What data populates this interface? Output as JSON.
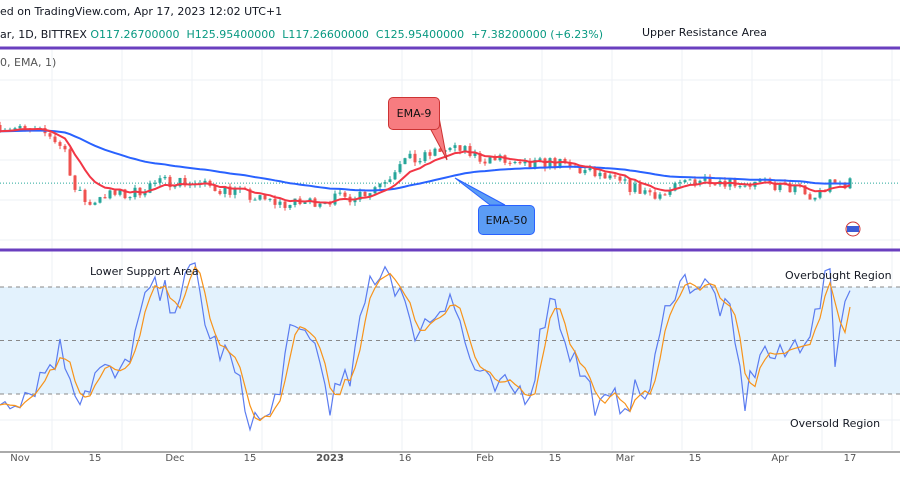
{
  "header": {
    "published": "ed on TradingView.com, Apr 17, 2023 12:02 UTC+1",
    "symbol": "ar, 1D, BITTREX",
    "open": "O117.26700000",
    "high": "H125.95400000",
    "low": "L117.26600000",
    "close": "C125.95400000",
    "change": "+7.38200000 (+6.23%)",
    "indicator": "0, EMA, 1)"
  },
  "annotations": {
    "upper": "Upper Resistance Area",
    "lower": "Lower Support Area",
    "overbought": "Overbought Region",
    "oversold": "Oversold Region",
    "ema9": "EMA-9",
    "ema50": "EMA-50"
  },
  "colors": {
    "up": "#26a69a",
    "down": "#ef5350",
    "ema9": "#f23645",
    "ema50": "#2962ff",
    "stochK": "#5b7cf0",
    "stochD": "#f7931a",
    "purple": "#6a3fbf",
    "band": "#e3f2fd"
  },
  "chart_data": {
    "type": "candlestick",
    "xaxis": {
      "ticks": [
        {
          "label": "Nov",
          "day": 4
        },
        {
          "label": "15",
          "day": 19
        },
        {
          "label": "Dec",
          "day": 35
        },
        {
          "label": "15",
          "day": 50
        },
        {
          "label": "2023",
          "day": 66
        },
        {
          "label": "16",
          "day": 81
        },
        {
          "label": "Feb",
          "day": 97
        },
        {
          "label": "15",
          "day": 111
        },
        {
          "label": "Mar",
          "day": 125
        },
        {
          "label": "15",
          "day": 139
        },
        {
          "label": "Apr",
          "day": 156
        },
        {
          "label": "17",
          "day": 170
        }
      ]
    },
    "last_price": 125.954,
    "price_keypoints": [
      [
        0,
        149.2
      ],
      [
        4,
        147.2
      ],
      [
        10,
        145.2
      ],
      [
        13,
        139.2
      ],
      [
        15,
        123.2
      ],
      [
        18,
        117.2
      ],
      [
        20,
        121.2
      ],
      [
        26,
        121.2
      ],
      [
        30,
        125.2
      ],
      [
        35,
        127.2
      ],
      [
        40,
        125.2
      ],
      [
        46,
        123.2
      ],
      [
        52,
        119.2
      ],
      [
        58,
        117.2
      ],
      [
        64,
        119.2
      ],
      [
        69,
        120
      ],
      [
        74,
        123.2
      ],
      [
        78,
        129.2
      ],
      [
        80,
        135.2
      ],
      [
        84,
        135.2
      ],
      [
        88,
        139.2
      ],
      [
        92,
        139.2
      ],
      [
        96,
        136
      ],
      [
        100,
        135.2
      ],
      [
        104,
        132
      ],
      [
        110,
        134.4
      ],
      [
        116,
        131.2
      ],
      [
        122,
        127.2
      ],
      [
        128,
        123.2
      ],
      [
        133,
        121.2
      ],
      [
        138,
        127.2
      ],
      [
        142,
        128
      ],
      [
        148,
        126
      ],
      [
        154,
        125.2
      ],
      [
        160,
        123.2
      ],
      [
        162,
        119.2
      ],
      [
        166,
        125.2
      ],
      [
        170,
        126
      ]
    ],
    "stochastic": {
      "overbought": 80,
      "middle": 50,
      "oversold": 20,
      "k_keypoints": [
        [
          0,
          16.6
        ],
        [
          6,
          22.2
        ],
        [
          12,
          44.7
        ],
        [
          16,
          19.4
        ],
        [
          20,
          33.4
        ],
        [
          24,
          27.8
        ],
        [
          30,
          78.3
        ],
        [
          35,
          72.7
        ],
        [
          39,
          89.5
        ],
        [
          42,
          50.3
        ],
        [
          46,
          39
        ],
        [
          50,
          5.4
        ],
        [
          54,
          5.4
        ],
        [
          58,
          50.3
        ],
        [
          62,
          55.9
        ],
        [
          66,
          16.6
        ],
        [
          70,
          27.8
        ],
        [
          74,
          83.9
        ],
        [
          77,
          92.3
        ],
        [
          80,
          78.3
        ],
        [
          82,
          55.9
        ],
        [
          86,
          61.5
        ],
        [
          90,
          78.3
        ],
        [
          94,
          39
        ],
        [
          98,
          22.2
        ],
        [
          106,
          22.2
        ],
        [
          110,
          78.3
        ],
        [
          114,
          44.7
        ],
        [
          120,
          11
        ],
        [
          124,
          16.6
        ],
        [
          130,
          22.2
        ],
        [
          134,
          78.3
        ],
        [
          138,
          83.9
        ],
        [
          142,
          78.3
        ],
        [
          146,
          61.5
        ],
        [
          149,
          16.6
        ],
        [
          152,
          44.7
        ],
        [
          156,
          39
        ],
        [
          160,
          50.3
        ],
        [
          163,
          61.5
        ],
        [
          166,
          89.5
        ],
        [
          167,
          41.9
        ],
        [
          170,
          86.7
        ]
      ]
    },
    "series": [
      {
        "name": "EMA-9",
        "period": 9
      },
      {
        "name": "EMA-50",
        "period": 50
      }
    ]
  }
}
